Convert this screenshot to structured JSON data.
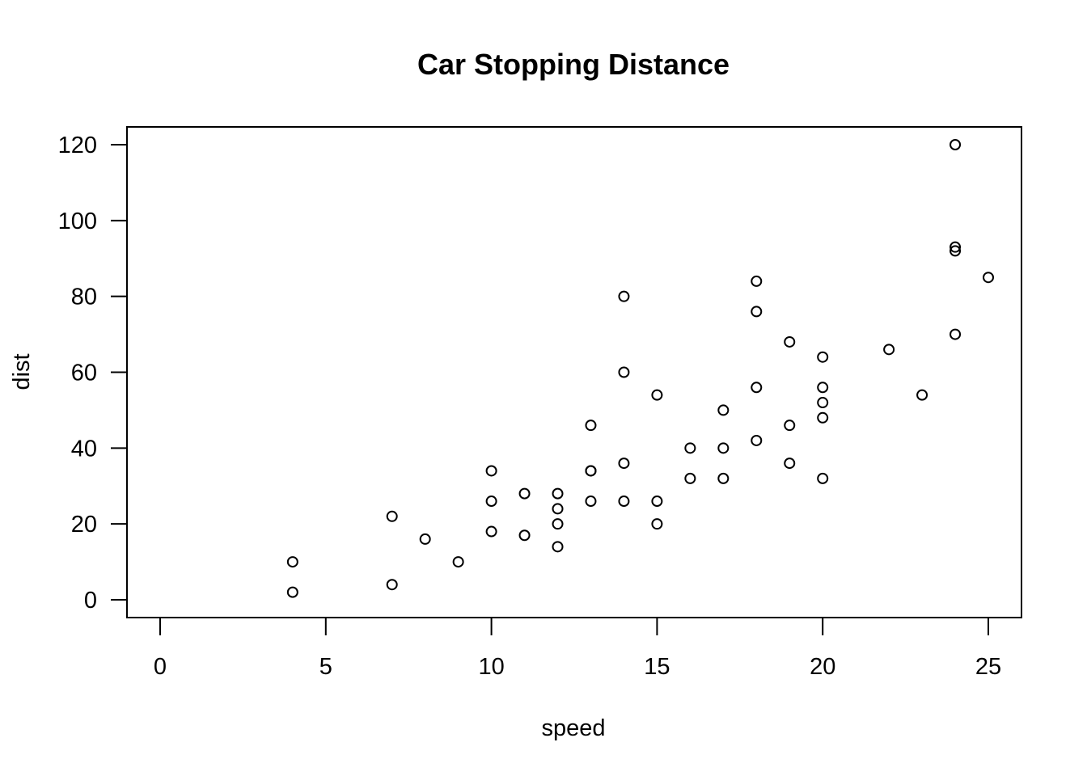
{
  "chart_data": {
    "type": "scatter",
    "title": "Car Stopping Distance",
    "xlabel": "speed",
    "ylabel": "dist",
    "xlim": [
      0,
      25
    ],
    "ylim": [
      0,
      120
    ],
    "xticks": [
      0,
      5,
      10,
      15,
      20,
      25
    ],
    "yticks": [
      0,
      20,
      40,
      60,
      80,
      100,
      120
    ],
    "grid": false,
    "series": [
      {
        "x": [
          4,
          4,
          7,
          7,
          8,
          9,
          10,
          10,
          10,
          11,
          11,
          12,
          12,
          12,
          12,
          13,
          13,
          13,
          13,
          14,
          14,
          14,
          14,
          15,
          15,
          15,
          16,
          16,
          17,
          17,
          17,
          18,
          18,
          18,
          18,
          19,
          19,
          19,
          20,
          20,
          20,
          20,
          20,
          22,
          23,
          24,
          24,
          24,
          24,
          25
        ],
        "y": [
          2,
          10,
          4,
          22,
          16,
          10,
          18,
          26,
          34,
          17,
          28,
          14,
          20,
          24,
          28,
          26,
          34,
          34,
          46,
          26,
          36,
          60,
          80,
          20,
          26,
          54,
          32,
          40,
          32,
          40,
          50,
          42,
          56,
          76,
          84,
          36,
          46,
          68,
          32,
          48,
          52,
          56,
          64,
          66,
          54,
          70,
          92,
          93,
          120,
          85
        ]
      }
    ]
  }
}
